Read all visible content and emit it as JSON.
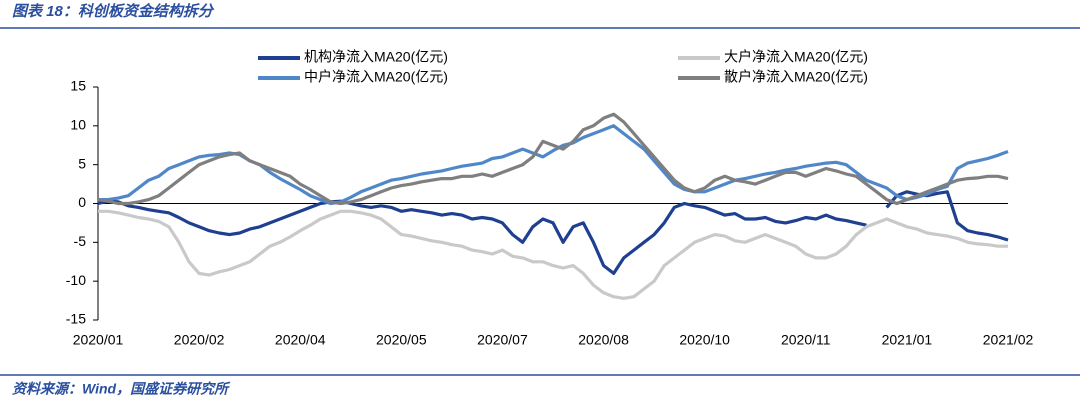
{
  "header": {
    "title": "图表 18：科创板资金结构拆分"
  },
  "footer": {
    "source": "资料来源：Wind，国盛证券研究所"
  },
  "chart_data": {
    "type": "line",
    "categories": [
      "2020/01",
      null,
      null,
      null,
      null,
      null,
      null,
      null,
      null,
      null,
      "2020/02",
      null,
      null,
      null,
      null,
      null,
      null,
      null,
      null,
      null,
      "2020/04",
      null,
      null,
      null,
      null,
      null,
      null,
      null,
      null,
      null,
      "2020/05",
      null,
      null,
      null,
      null,
      null,
      null,
      null,
      null,
      null,
      "2020/07",
      null,
      null,
      null,
      null,
      null,
      null,
      null,
      null,
      null,
      "2020/08",
      null,
      null,
      null,
      null,
      null,
      null,
      null,
      null,
      null,
      "2020/10",
      null,
      null,
      null,
      null,
      null,
      null,
      null,
      null,
      null,
      "2020/11",
      null,
      null,
      null,
      null,
      null,
      null,
      null,
      null,
      null,
      "2021/01",
      null,
      null,
      null,
      null,
      null,
      null,
      null,
      null,
      null,
      "2021/02"
    ],
    "series": [
      {
        "name": "机构净流入MA20(亿元)",
        "color": "#1f3f91",
        "values": [
          0,
          0.3,
          0.2,
          -0.3,
          -0.5,
          -0.8,
          -1,
          -1.2,
          -1.8,
          -2.5,
          -3,
          -3.5,
          -3.8,
          -4,
          -3.8,
          -3.3,
          -3,
          -2.5,
          -2,
          -1.5,
          -1,
          -0.5,
          0,
          0.2,
          0.3,
          0,
          -0.3,
          -0.5,
          -0.3,
          -0.5,
          -1,
          -0.8,
          -1,
          -1.2,
          -1.5,
          -1.3,
          -1.5,
          -2,
          -1.8,
          -2,
          -2.5,
          -4,
          -5,
          -3,
          -2,
          -2.5,
          -5,
          -3,
          -2.5,
          -5,
          -8,
          -9,
          -7,
          -6,
          -5,
          -4,
          -2.5,
          -0.5,
          0,
          -0.3,
          -0.5,
          -1,
          -1.5,
          -1.3,
          -2,
          -2,
          -1.8,
          -2.3,
          -2.5,
          -2.2,
          -1.8,
          -2,
          -1.5,
          -2,
          -2.2,
          -2.5,
          -2.8,
          null,
          -0.5,
          1,
          1.5,
          1.2,
          1,
          1.3,
          1.5,
          -2.5,
          -3.5,
          -3.8,
          -4,
          -4.3,
          -4.7
        ]
      },
      {
        "name": "大户净流入MA20(亿元)",
        "color": "#c9c9c9",
        "values": [
          -1,
          -1,
          -1.2,
          -1.5,
          -1.8,
          -2,
          -2.3,
          -3,
          -5,
          -7.5,
          -9,
          -9.2,
          -8.8,
          -8.5,
          -8,
          -7.5,
          -6.5,
          -5.5,
          -5,
          -4.3,
          -3.5,
          -2.8,
          -2,
          -1.5,
          -1,
          -1,
          -1.2,
          -1.5,
          -2,
          -3,
          -4,
          -4.2,
          -4.5,
          -4.8,
          -5,
          -5.3,
          -5.5,
          -6,
          -6.2,
          -6.5,
          -6,
          -6.8,
          -7,
          -7.5,
          -7.5,
          -8,
          -8.3,
          -8,
          -9,
          -10.5,
          -11.5,
          -12,
          -12.2,
          -12,
          -11,
          -10,
          -8,
          -7,
          -6,
          -5,
          -4.5,
          -4,
          -4.2,
          -4.8,
          -5,
          -4.5,
          -4,
          -4.5,
          -5,
          -5.5,
          -6.5,
          -7,
          -7,
          -6.5,
          -5.5,
          -4,
          -3,
          -2.5,
          -2,
          -2.5,
          -3,
          -3.3,
          -3.8,
          -4,
          -4.2,
          -4.5,
          -5,
          -5.2,
          -5.3,
          -5.5,
          -5.5
        ]
      },
      {
        "name": "中户净流入MA20(亿元)",
        "color": "#4f87c8",
        "values": [
          0.5,
          0.5,
          0.7,
          1,
          2,
          3,
          3.5,
          4.5,
          5,
          5.5,
          6,
          6.2,
          6.3,
          6.5,
          6.3,
          5.5,
          5,
          4,
          3.2,
          2.5,
          1.8,
          1,
          0.5,
          0,
          0.2,
          0.8,
          1.5,
          2,
          2.5,
          3,
          3.2,
          3.5,
          3.8,
          4,
          4.2,
          4.5,
          4.8,
          5,
          5.2,
          5.8,
          6,
          6.5,
          7,
          6.5,
          6,
          6.8,
          7.5,
          7.8,
          8.5,
          9,
          9.5,
          10,
          9,
          8,
          7,
          5.5,
          4,
          2.5,
          1.8,
          1.5,
          1.5,
          2,
          2.5,
          3,
          3.2,
          3.5,
          3.8,
          4,
          4.3,
          4.5,
          4.8,
          5,
          5.2,
          5.3,
          5,
          4,
          3,
          2.5,
          2,
          1,
          0.5,
          0.8,
          1.2,
          1.8,
          2.2,
          4.5,
          5.2,
          5.5,
          5.8,
          6.2,
          6.7
        ]
      },
      {
        "name": "散户净流入MA20(亿元)",
        "color": "#7f7f7f",
        "values": [
          0.5,
          0.3,
          0,
          0,
          0.2,
          0.5,
          1,
          2,
          3,
          4,
          5,
          5.5,
          6,
          6.3,
          6.5,
          5.5,
          5,
          4.5,
          4,
          3.5,
          2.5,
          1.8,
          1,
          0.2,
          0,
          0.2,
          0.5,
          1,
          1.5,
          2,
          2.3,
          2.5,
          2.8,
          3,
          3.2,
          3.2,
          3.5,
          3.5,
          3.8,
          3.5,
          4,
          4.5,
          5,
          6,
          8,
          7.5,
          7,
          8,
          9.5,
          10,
          11,
          11.5,
          10.5,
          9,
          7.5,
          6,
          4.5,
          3,
          2,
          1.5,
          2,
          3,
          3.5,
          3,
          2.8,
          2.5,
          3,
          3.5,
          4,
          4,
          3.5,
          4,
          4.5,
          4.2,
          3.8,
          3.5,
          2.5,
          1.5,
          0.5,
          0,
          0.5,
          1,
          1.5,
          2,
          2.5,
          3,
          3.2,
          3.3,
          3.5,
          3.5,
          3.2
        ]
      }
    ],
    "ylim": [
      -15,
      15
    ],
    "yticks": [
      -15,
      -10,
      -5,
      0,
      5,
      10,
      15
    ],
    "grid": false,
    "legend": "top"
  }
}
